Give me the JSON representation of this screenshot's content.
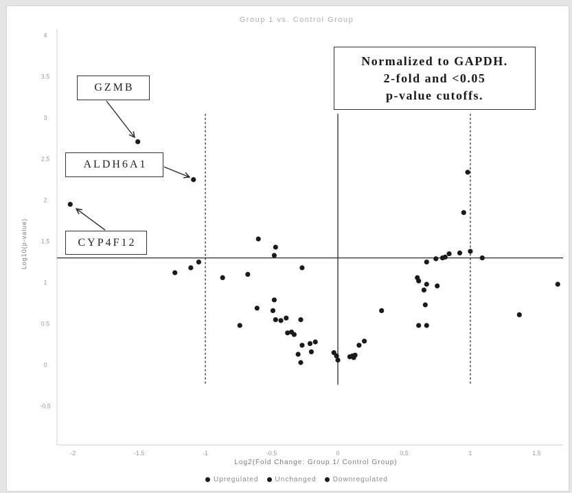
{
  "chart_data": {
    "type": "scatter",
    "title": "Group 1 vs. Control Group",
    "xlabel": "Log2(Fold Change: Group 1/ Control Group)",
    "ylabel": "Log10(p-value)",
    "xlim": [
      -2.12,
      1.7
    ],
    "ylim": [
      -0.97,
      4.08
    ],
    "xticks": [
      -2,
      -1.5,
      -1,
      -0.5,
      0,
      0.5,
      1,
      1.5
    ],
    "yticks": [
      -0.5,
      0,
      0.5,
      1,
      1.5,
      2,
      2.5,
      3,
      3.5,
      4
    ],
    "grid": false,
    "legend_position": "bottom-center",
    "threshold_lines": {
      "x_solid": 0,
      "x_dashed": [
        -1,
        1
      ],
      "y_solid": 1.3
    },
    "series": [
      {
        "name": "Upregulated",
        "color": "#1a1a1a",
        "points": []
      },
      {
        "name": "Unchanged",
        "color": "#1a1a1a",
        "points": [
          [
            0.98,
            2.34
          ],
          [
            0.95,
            1.85
          ],
          [
            1.0,
            1.38
          ],
          [
            0.92,
            1.36
          ],
          [
            0.84,
            1.35
          ],
          [
            0.81,
            1.31
          ],
          [
            0.79,
            1.3
          ],
          [
            0.74,
            1.29
          ],
          [
            0.67,
            1.25
          ],
          [
            1.09,
            1.3
          ],
          [
            0.6,
            1.06
          ],
          [
            0.61,
            1.02
          ],
          [
            0.67,
            0.98
          ],
          [
            0.65,
            0.91
          ],
          [
            0.75,
            0.96
          ],
          [
            0.66,
            0.73
          ],
          [
            0.61,
            0.48
          ],
          [
            0.67,
            0.48
          ],
          [
            1.66,
            0.98
          ],
          [
            1.37,
            0.61
          ],
          [
            0.33,
            0.66
          ],
          [
            -1.23,
            1.12
          ],
          [
            -1.11,
            1.18
          ],
          [
            -1.05,
            1.25
          ],
          [
            -0.87,
            1.06
          ],
          [
            -0.68,
            1.1
          ],
          [
            -0.6,
            1.53
          ],
          [
            -0.47,
            1.43
          ],
          [
            -0.48,
            1.33
          ],
          [
            -0.27,
            1.18
          ],
          [
            -0.48,
            0.79
          ],
          [
            -0.49,
            0.66
          ],
          [
            -0.61,
            0.69
          ],
          [
            -0.74,
            0.48
          ],
          [
            -0.47,
            0.55
          ],
          [
            -0.43,
            0.54
          ],
          [
            -0.39,
            0.57
          ],
          [
            -0.28,
            0.55
          ],
          [
            -0.38,
            0.39
          ],
          [
            -0.35,
            0.4
          ],
          [
            -0.33,
            0.37
          ],
          [
            -0.27,
            0.24
          ],
          [
            -0.3,
            0.13
          ],
          [
            -0.28,
            0.03
          ],
          [
            -0.21,
            0.26
          ],
          [
            -0.17,
            0.28
          ],
          [
            -0.2,
            0.16
          ],
          [
            -0.03,
            0.15
          ],
          [
            -0.01,
            0.11
          ],
          [
            0.0,
            0.06
          ],
          [
            0.09,
            0.1
          ],
          [
            0.11,
            0.11
          ],
          [
            0.13,
            0.12
          ],
          [
            0.12,
            0.09
          ],
          [
            0.16,
            0.24
          ],
          [
            0.2,
            0.29
          ]
        ]
      },
      {
        "name": "Downregulated",
        "color": "#1a1a1a",
        "points": [
          [
            -1.51,
            2.71
          ],
          [
            -1.09,
            2.25
          ],
          [
            -2.02,
            1.95
          ]
        ]
      }
    ],
    "annotations": [
      {
        "text": "GZMB",
        "x": -1.51,
        "y": 2.71
      },
      {
        "text": "ALDH6A1",
        "x": -1.09,
        "y": 2.25
      },
      {
        "text": "CYP4F12",
        "x": -2.02,
        "y": 1.95
      }
    ],
    "note": [
      "Normalized to GAPDH.",
      "2-fold and <0.05",
      "p-value cutoffs."
    ]
  }
}
